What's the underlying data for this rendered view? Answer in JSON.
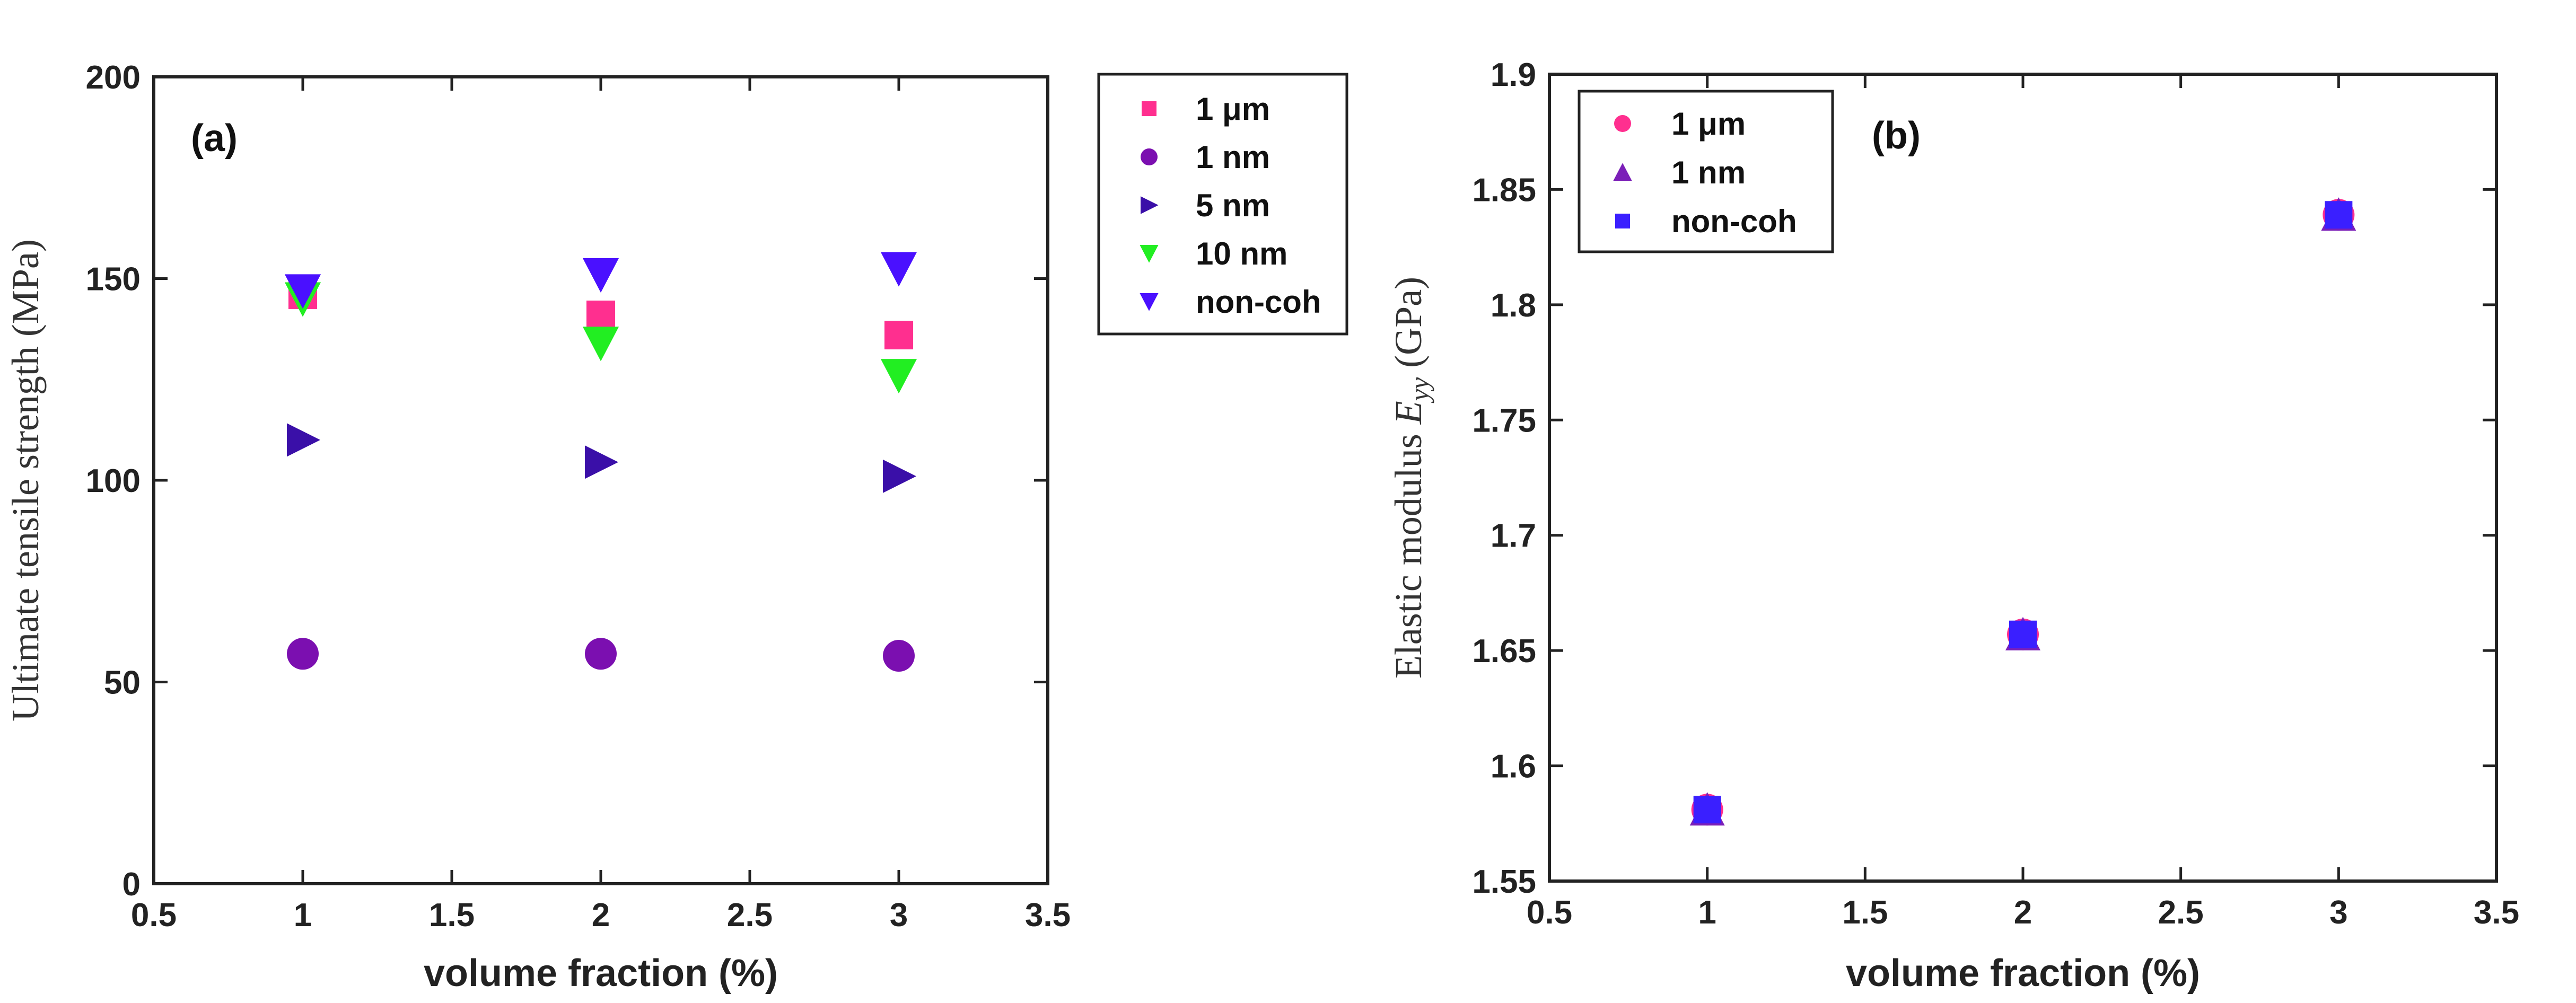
{
  "chart_data": [
    {
      "type": "scatter",
      "panel_label": "(a)",
      "title": "",
      "xlabel": "volume fraction (%)",
      "ylabel": "Ultimate tensile strength (MPa)",
      "xlim": [
        0.5,
        3.5
      ],
      "ylim": [
        0,
        200
      ],
      "xticks": [
        "0.5",
        "1",
        "1.5",
        "2",
        "2.5",
        "3",
        "3.5"
      ],
      "yticks": [
        "0",
        "50",
        "100",
        "150",
        "200"
      ],
      "grid": false,
      "legend_position": "outside-right",
      "series": [
        {
          "name": "1 μm",
          "marker": "square",
          "color": "#ff2f8f",
          "x": [
            1,
            2,
            3
          ],
          "y": [
            146,
            141,
            136
          ]
        },
        {
          "name": "1 nm",
          "marker": "circle",
          "color": "#7b0fb0",
          "x": [
            1,
            2,
            3
          ],
          "y": [
            57,
            57,
            56.5
          ]
        },
        {
          "name": "5 nm",
          "marker": "triangle-right",
          "color": "#3a0fa8",
          "x": [
            1,
            2,
            3
          ],
          "y": [
            110,
            104.5,
            101
          ]
        },
        {
          "name": "10 nm",
          "marker": "triangle-down",
          "color": "#22ee22",
          "x": [
            1,
            2,
            3
          ],
          "y": [
            145,
            134,
            126
          ]
        },
        {
          "name": "non-coh",
          "marker": "triangle-down",
          "color": "#4a10ff",
          "x": [
            1,
            2,
            3
          ],
          "y": [
            147,
            151,
            152.5
          ]
        }
      ]
    },
    {
      "type": "scatter",
      "panel_label": "(b)",
      "title": "",
      "xlabel": "volume fraction (%)",
      "ylabel_prefix": "Elastic modulus ",
      "ylabel_symbol": "E",
      "ylabel_subscript": "yy",
      "ylabel_suffix": " (GPa)",
      "xlim": [
        0.5,
        3.5
      ],
      "ylim": [
        1.55,
        1.9
      ],
      "xticks": [
        "0.5",
        "1",
        "1.5",
        "2",
        "2.5",
        "3",
        "3.5"
      ],
      "yticks": [
        "1.55",
        "1.6",
        "1.65",
        "1.7",
        "1.75",
        "1.8",
        "1.85",
        "1.9"
      ],
      "grid": false,
      "legend_position": "top-left",
      "series": [
        {
          "name": "1 μm",
          "marker": "circle",
          "color": "#ff2f8f",
          "x": [
            1,
            2,
            3
          ],
          "y": [
            1.581,
            1.657,
            1.839
          ]
        },
        {
          "name": "1 nm",
          "marker": "triangle-up",
          "color": "#7b1fb8",
          "x": [
            1,
            2,
            3
          ],
          "y": [
            1.581,
            1.657,
            1.839
          ]
        },
        {
          "name": "non-coh",
          "marker": "square",
          "color": "#3a1fff",
          "x": [
            1,
            2,
            3
          ],
          "y": [
            1.581,
            1.657,
            1.839
          ]
        }
      ]
    }
  ]
}
